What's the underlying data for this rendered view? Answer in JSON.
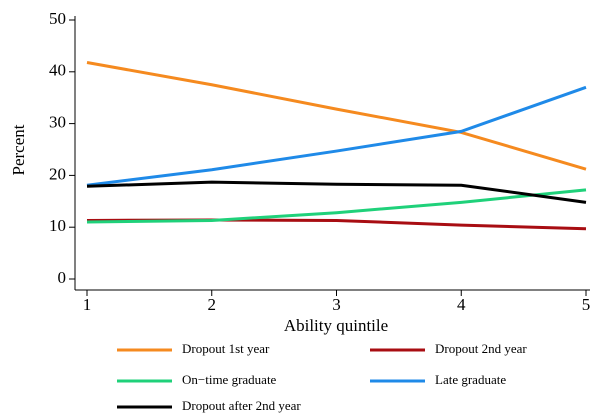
{
  "chart_data": {
    "type": "line",
    "x": [
      1,
      2,
      3,
      4,
      5
    ],
    "xlabel": "Ability quintile",
    "ylabel": "Percent",
    "xlim": [
      1,
      5
    ],
    "xticks": [
      1,
      2,
      3,
      4,
      5
    ],
    "ylim": [
      0,
      50
    ],
    "yticks": [
      0,
      10,
      20,
      30,
      40,
      50
    ],
    "grid": false,
    "legend": "bottom",
    "series": [
      {
        "name": "Dropout 1st year",
        "color": "#f58a1f",
        "values": [
          41.8,
          37.5,
          32.8,
          28.3,
          21.2
        ]
      },
      {
        "name": "Dropout 2nd year",
        "color": "#a80d12",
        "values": [
          11.3,
          11.4,
          11.3,
          10.4,
          9.7
        ]
      },
      {
        "name": "On−time graduate",
        "color": "#1fd17a",
        "values": [
          11.0,
          11.3,
          12.8,
          14.8,
          17.2
        ]
      },
      {
        "name": "Late graduate",
        "color": "#1f8ae8",
        "values": [
          18.1,
          21.1,
          24.7,
          28.5,
          37.0
        ]
      },
      {
        "name": "Dropout after 2nd year",
        "color": "#000000",
        "values": [
          17.9,
          18.7,
          18.3,
          18.1,
          14.8
        ]
      }
    ]
  }
}
